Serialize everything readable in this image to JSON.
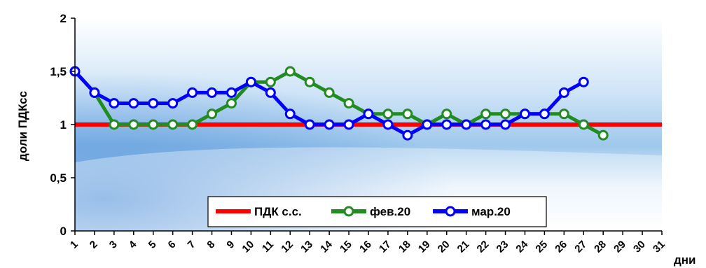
{
  "chart_data": {
    "type": "line",
    "ylabel": "доли ПДКсс",
    "xlabel": "дни",
    "ylim": [
      0,
      2
    ],
    "yticks": [
      "0",
      "0,5",
      "1",
      "1,5",
      "2"
    ],
    "yticks_values": [
      0,
      0.5,
      1,
      1.5,
      2
    ],
    "categories": [
      "1",
      "2",
      "3",
      "4",
      "5",
      "6",
      "7",
      "8",
      "9",
      "10",
      "11",
      "12",
      "13",
      "14",
      "15",
      "16",
      "17",
      "18",
      "19",
      "20",
      "21",
      "22",
      "23",
      "24",
      "25",
      "26",
      "27",
      "28",
      "29",
      "30",
      "31"
    ],
    "grid": false,
    "legend_position": "bottom-center",
    "series": [
      {
        "name": "ПДК с.с.",
        "color": "#ff0000",
        "marker": "none",
        "values": [
          1,
          1,
          1,
          1,
          1,
          1,
          1,
          1,
          1,
          1,
          1,
          1,
          1,
          1,
          1,
          1,
          1,
          1,
          1,
          1,
          1,
          1,
          1,
          1,
          1,
          1,
          1,
          1,
          1,
          1,
          1
        ]
      },
      {
        "name": "фев.20",
        "color": "#228b22",
        "marker": "circle",
        "values": [
          1.5,
          1.3,
          1.0,
          1.0,
          1.0,
          1.0,
          1.0,
          1.1,
          1.2,
          1.4,
          1.4,
          1.5,
          1.4,
          1.3,
          1.2,
          1.1,
          1.1,
          1.1,
          1.0,
          1.1,
          1.0,
          1.1,
          1.1,
          1.1,
          1.1,
          1.1,
          1.0,
          0.9,
          null,
          null,
          null
        ]
      },
      {
        "name": "мар.20",
        "color": "#0000ff",
        "marker": "circle",
        "values": [
          1.5,
          1.3,
          1.2,
          1.2,
          1.2,
          1.2,
          1.3,
          1.3,
          1.3,
          1.4,
          1.3,
          1.1,
          1.0,
          1.0,
          1.0,
          1.1,
          1.0,
          0.9,
          1.0,
          1.0,
          1.0,
          1.0,
          1.0,
          1.1,
          1.1,
          1.3,
          1.4,
          null,
          null,
          null,
          null
        ]
      }
    ]
  }
}
